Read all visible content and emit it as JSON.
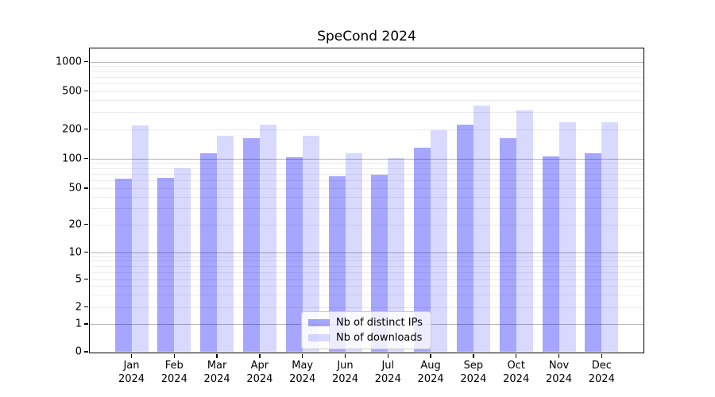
{
  "chart_data": {
    "type": "bar",
    "title": "SpeCond 2024",
    "xlabel": "",
    "ylabel": "",
    "yscale": "symlog-like",
    "grid": true,
    "legend_position": "bottom-center",
    "categories": [
      "Jan",
      "Feb",
      "Mar",
      "Apr",
      "May",
      "Jun",
      "Jul",
      "Aug",
      "Sep",
      "Oct",
      "Nov",
      "Dec"
    ],
    "year_label": "2024",
    "ytick_labels": [
      "0",
      "1",
      "2",
      "5",
      "10",
      "20",
      "50",
      "100",
      "200",
      "500",
      "1000"
    ],
    "ylim": [
      0,
      1400
    ],
    "series": [
      {
        "name": "Nb of distinct IPs",
        "color": "rgba(0,0,255,0.35)",
        "color_hex_on_white": "#a6a6ff",
        "values": [
          62,
          63,
          112,
          162,
          102,
          66,
          69,
          129,
          221,
          160,
          105,
          113
        ]
      },
      {
        "name": "Nb of downloads",
        "color": "rgba(0,0,255,0.15)",
        "color_hex_on_white": "#d9d9ff",
        "values": [
          216,
          80,
          170,
          223,
          170,
          112,
          101,
          196,
          352,
          316,
          235,
          235
        ]
      }
    ],
    "colors": {
      "major_gridline": "#b4b4b4",
      "minor_gridline": "#ebebeb",
      "axis_frame": "#000000",
      "text": "#000000"
    }
  }
}
